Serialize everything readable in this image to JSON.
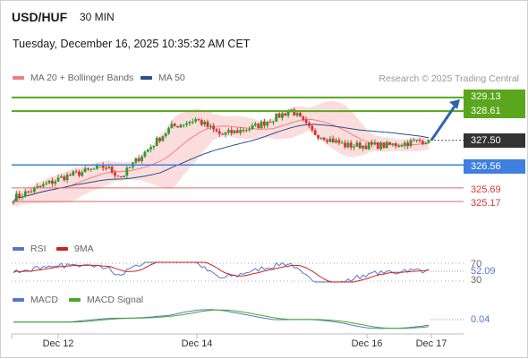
{
  "header": {
    "symbol": "USD/HUF",
    "timeframe": "30 MIN",
    "datetime": "Tuesday, December 16, 2025 10:35:32 AM CET"
  },
  "legend": {
    "ma20_label": "MA 20 + Bollinger Bands",
    "ma50_label": "MA 50",
    "credit": "Research © 2025 Trading Central"
  },
  "colors": {
    "up_candle": "#2f9a2f",
    "down_candle": "#d93232",
    "ma20": "#f08080",
    "bollinger_fill": "#fbd7d7",
    "ma50": "#2a4f8a",
    "resistance": "#5aa61c",
    "support": "#3e7fe0",
    "target": "#e06a6a",
    "arrow": "#2f62b0",
    "rsi": "#5577cc",
    "rsi_ma": "#cc2222",
    "macd": "#5577cc",
    "macd_signal": "#44aa22"
  },
  "chart_data": {
    "type": "candlestick",
    "price_axis": {
      "min": 324.9,
      "max": 329.5
    },
    "levels": {
      "resistance_2": "329.13",
      "resistance_1": "328.61",
      "last_price": "327.50",
      "support_1": "326.56",
      "target_1": "325.69",
      "target_2": "325.17"
    },
    "x_labels": [
      "Dec 12",
      "Dec 14",
      "Dec 16",
      "Dec 17"
    ],
    "candles": {
      "first_close": 325.3,
      "last_close": 327.52,
      "peak": 328.65,
      "peak_position": 0.67
    },
    "forecast": {
      "from": 327.5,
      "to": 329.13
    },
    "indicators": {
      "rsi": {
        "label": "RSI",
        "ma_label": "9MA",
        "value": "52.09",
        "levels": [
          "70",
          "30"
        ]
      },
      "macd": {
        "label": "MACD",
        "signal_label": "MACD Signal",
        "value": "0.04"
      }
    }
  }
}
